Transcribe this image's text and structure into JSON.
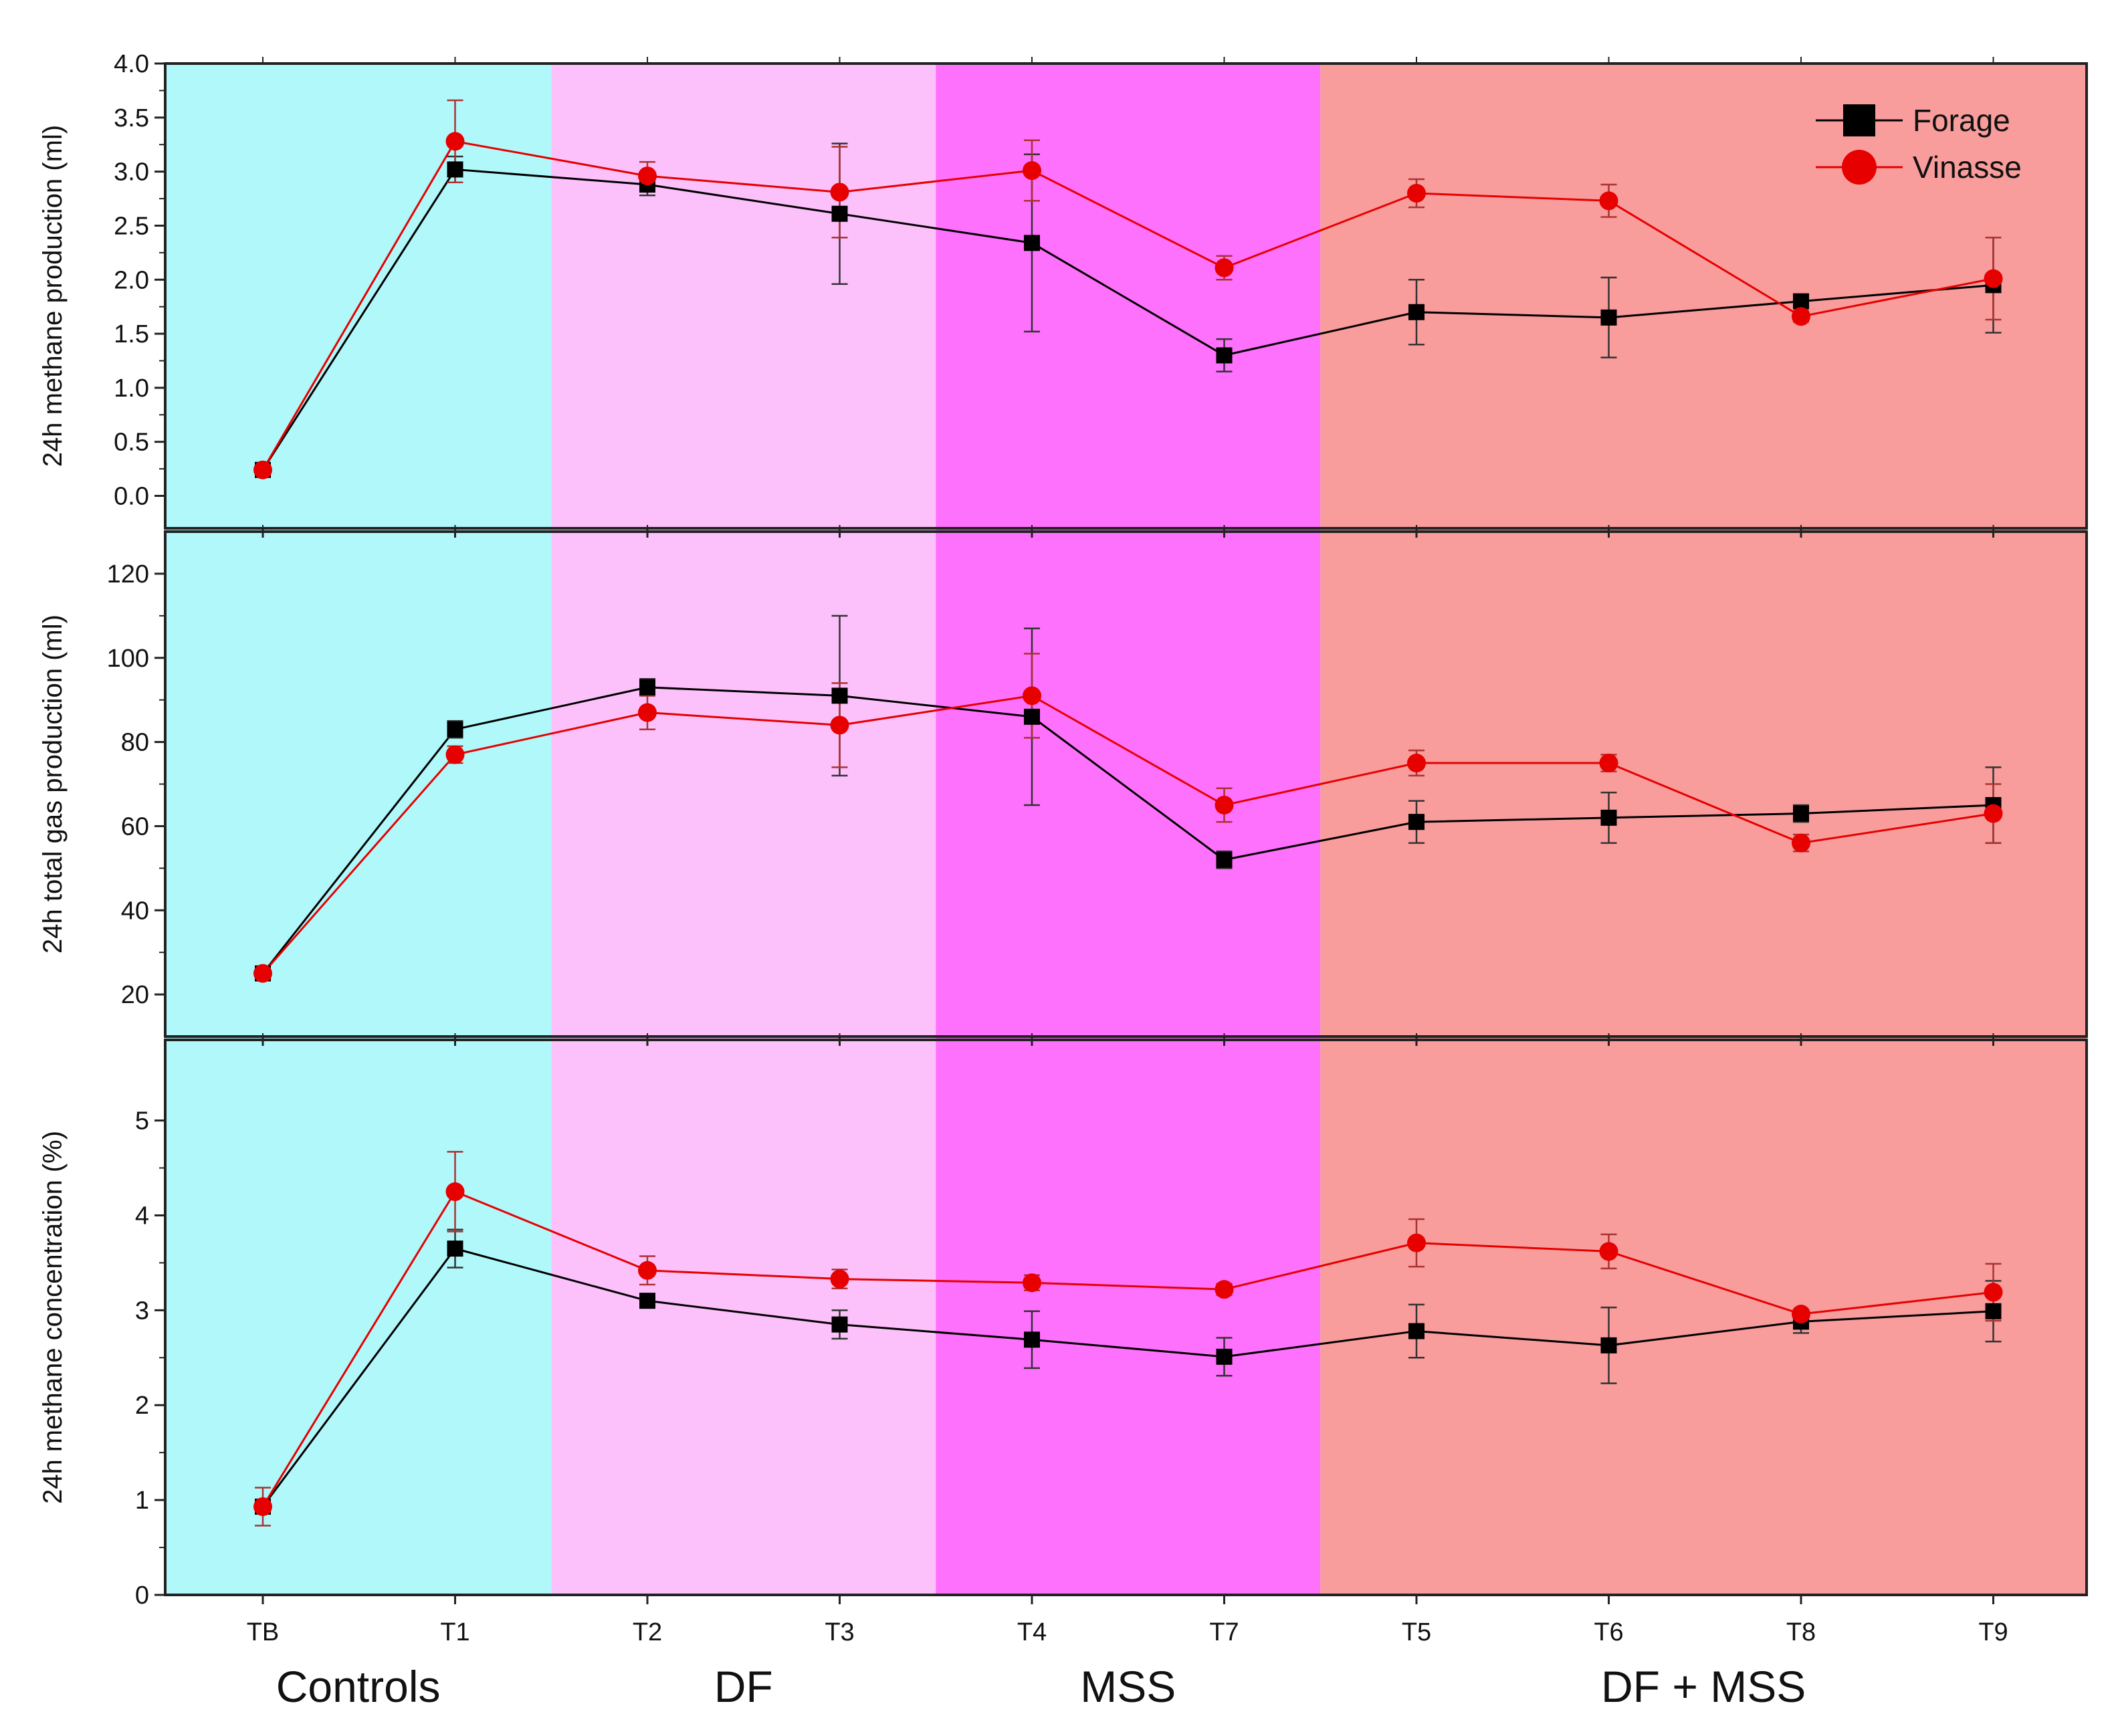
{
  "colors": {
    "forage": "#000000",
    "vinasse": "#e60000",
    "controls_band": "#b1f8fb",
    "df_band": "#fcc1fb",
    "mss_band": "#fe71fc",
    "dfmss_band": "#f89c9c"
  },
  "legend": [
    {
      "series": "forage",
      "label": "Forage",
      "marker": "square"
    },
    {
      "series": "vinasse",
      "label": "Vinasse",
      "marker": "circle"
    }
  ],
  "chart_data": {
    "type": "line",
    "x_categories": [
      "TB",
      "T1",
      "T2",
      "T3",
      "T4",
      "T7",
      "T5",
      "T6",
      "T8",
      "T9"
    ],
    "groups": [
      {
        "label": "Controls",
        "categories": [
          "TB",
          "T1"
        ],
        "band": "controls_band"
      },
      {
        "label": "DF",
        "categories": [
          "T2",
          "T3"
        ],
        "band": "df_band"
      },
      {
        "label": "MSS",
        "categories": [
          "T4",
          "T7"
        ],
        "band": "mss_band"
      },
      {
        "label": "DF + MSS",
        "categories": [
          "T5",
          "T6",
          "T8",
          "T9"
        ],
        "band": "dfmss_band"
      }
    ],
    "panels": [
      {
        "ylabel": "24h methane production (ml)",
        "ylim": [
          -0.3,
          4.0
        ],
        "yticks": [
          0.0,
          0.5,
          1.0,
          1.5,
          2.0,
          2.5,
          3.0,
          3.5,
          4.0
        ],
        "ytick_labels": [
          "0.0",
          "0.5",
          "1.0",
          "1.5",
          "2.0",
          "2.5",
          "3.0",
          "3.5",
          "4.0"
        ],
        "series": [
          {
            "name": "Forage",
            "key": "forage",
            "values": [
              0.24,
              3.02,
              2.88,
              2.61,
              2.34,
              1.3,
              1.7,
              1.65,
              1.8,
              1.95
            ],
            "errors": [
              0.03,
              0.12,
              0.1,
              0.65,
              0.82,
              0.15,
              0.3,
              0.37,
              0.05,
              0.44
            ]
          },
          {
            "name": "Vinasse",
            "key": "vinasse",
            "values": [
              0.24,
              3.28,
              2.96,
              2.81,
              3.01,
              2.11,
              2.8,
              2.73,
              1.66,
              2.01
            ],
            "errors": [
              0.03,
              0.38,
              0.13,
              0.42,
              0.28,
              0.11,
              0.13,
              0.15,
              0.05,
              0.38
            ]
          }
        ]
      },
      {
        "ylabel": "24h total gas production (ml)",
        "ylim": [
          10,
          130
        ],
        "yticks": [
          20,
          40,
          60,
          80,
          100,
          120
        ],
        "ytick_labels": [
          "20",
          "40",
          "60",
          "80",
          "100",
          "120"
        ],
        "series": [
          {
            "name": "Forage",
            "key": "forage",
            "values": [
              25,
              83,
              93,
              91,
              86,
              52,
              61,
              62,
              63,
              65
            ],
            "errors": [
              1,
              2,
              2,
              19,
              21,
              2,
              5,
              6,
              2,
              9
            ]
          },
          {
            "name": "Vinasse",
            "key": "vinasse",
            "values": [
              25,
              77,
              87,
              84,
              91,
              65,
              75,
              75,
              56,
              63
            ],
            "errors": [
              1,
              2,
              4,
              10,
              10,
              4,
              3,
              2,
              2,
              7
            ]
          }
        ]
      },
      {
        "ylabel": "24h methane concentration (%)",
        "ylim": [
          0,
          5.85
        ],
        "yticks": [
          0,
          1,
          2,
          3,
          4,
          5
        ],
        "ytick_labels": [
          "0",
          "1",
          "2",
          "3",
          "4",
          "5"
        ],
        "series": [
          {
            "name": "Forage",
            "key": "forage",
            "values": [
              0.93,
              3.65,
              3.1,
              2.85,
              2.69,
              2.51,
              2.78,
              2.63,
              2.88,
              2.99
            ],
            "errors": [
              0.05,
              0.2,
              0.05,
              0.15,
              0.3,
              0.2,
              0.28,
              0.4,
              0.12,
              0.32
            ]
          },
          {
            "name": "Vinasse",
            "key": "vinasse",
            "values": [
              0.93,
              4.25,
              3.42,
              3.33,
              3.29,
              3.22,
              3.71,
              3.62,
              2.96,
              3.19
            ],
            "errors": [
              0.2,
              0.42,
              0.15,
              0.1,
              0.08,
              0.06,
              0.25,
              0.18,
              0.05,
              0.3
            ]
          }
        ]
      }
    ]
  }
}
